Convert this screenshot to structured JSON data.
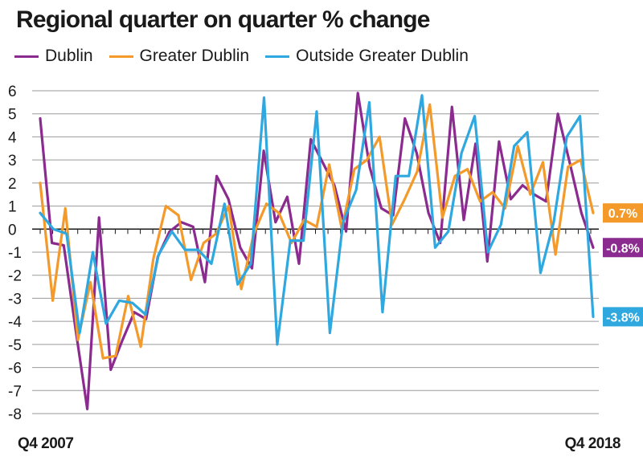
{
  "chart_data": {
    "type": "line",
    "title": "Regional quarter on quarter % change",
    "xlabel": "",
    "ylabel": "",
    "ylim": [
      -8,
      6
    ],
    "yticks": [
      "6",
      "5",
      "4",
      "3",
      "2",
      "1",
      "0",
      "-1",
      "-2",
      "-3",
      "-4",
      "-5",
      "-6",
      "-7",
      "-8"
    ],
    "x_start_label": "Q4 2007",
    "x_end_label": "Q4 2018",
    "grid": true,
    "legend_position": "top",
    "series": [
      {
        "name": "Dublin",
        "color": "#8b2a8f",
        "end_label": "-0.8%",
        "values": [
          4.8,
          -0.6,
          -0.7,
          -4.3,
          -7.8,
          0.5,
          -6.1,
          -4.8,
          -3.6,
          -3.9,
          -1.2,
          -0.1,
          0.3,
          0.1,
          -2.3,
          2.3,
          1.3,
          -0.8,
          -1.7,
          3.4,
          0.3,
          1.4,
          -1.5,
          3.9,
          2.9,
          1.9,
          -0.1,
          5.9,
          2.7,
          0.9,
          0.6,
          4.8,
          3.3,
          0.7,
          -0.6,
          5.3,
          0.4,
          3.7,
          -1.4,
          3.8,
          1.3,
          1.9,
          1.5,
          1.2,
          5.0,
          2.9,
          0.7,
          -0.8
        ]
      },
      {
        "name": "Greater Dublin",
        "color": "#f39a2b",
        "end_label": "0.7%",
        "values": [
          2.0,
          -3.1,
          0.9,
          -4.8,
          -2.3,
          -5.6,
          -5.5,
          -2.9,
          -5.1,
          -1.3,
          1.0,
          0.6,
          -2.2,
          -0.6,
          -0.2,
          1.0,
          -2.6,
          -0.2,
          1.1,
          0.7,
          -0.6,
          0.4,
          0.1,
          2.8,
          0.0,
          2.6,
          3.0,
          4.0,
          0.2,
          1.3,
          2.5,
          5.4,
          0.5,
          2.3,
          2.6,
          1.2,
          1.6,
          0.9,
          3.6,
          1.5,
          2.9,
          -1.1,
          2.7,
          3.0,
          0.7
        ]
      },
      {
        "name": "Outside Greater Dublin",
        "color": "#2fa8e0",
        "end_label": "-3.8%",
        "values": [
          0.7,
          0.0,
          -0.2,
          -4.5,
          -1.0,
          -4.1,
          -3.1,
          -3.2,
          -3.7,
          -1.1,
          -0.1,
          -0.9,
          -0.9,
          -1.5,
          1.1,
          -2.4,
          -1.5,
          5.7,
          -5.0,
          -0.5,
          -0.5,
          5.1,
          -4.5,
          0.3,
          1.7,
          5.5,
          -3.6,
          2.3,
          2.3,
          5.8,
          -0.8,
          -0.1,
          3.3,
          4.9,
          -1.0,
          0.2,
          3.6,
          4.2,
          -1.9,
          0.3,
          4.0,
          4.9,
          -3.8
        ]
      }
    ]
  }
}
